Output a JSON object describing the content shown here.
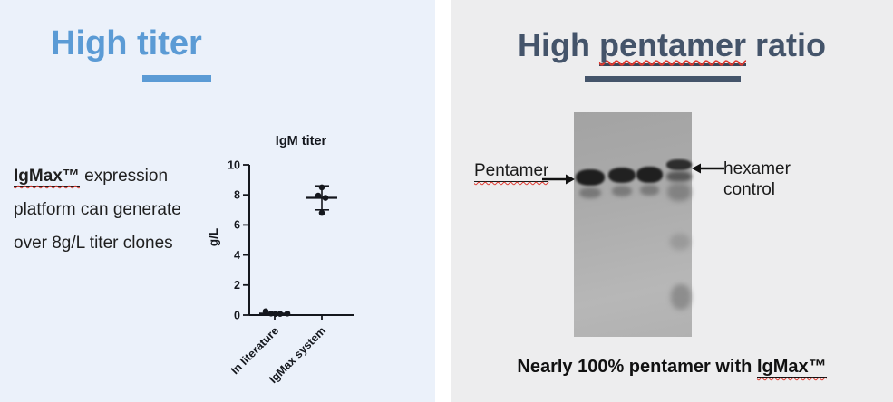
{
  "left_panel": {
    "title": {
      "prefix": "High ",
      "word": "titer"
    },
    "description": {
      "term": "IgMax™",
      "line1_rest": " expression",
      "line2": "platform can generate",
      "line3": "over 8g/L titer clones"
    }
  },
  "chart_data": {
    "type": "scatter",
    "title": "IgM titer",
    "ylabel": "g/L",
    "xlabel": "",
    "ylim": [
      0,
      10
    ],
    "yticks": [
      0,
      2,
      4,
      6,
      8,
      10
    ],
    "grid": false,
    "legend": "none",
    "categories": [
      "In literature",
      "IgMax system"
    ],
    "series": [
      {
        "name": "In literature",
        "points": [
          {
            "v": 0.25,
            "dx": -10
          },
          {
            "v": 0.1,
            "dx": -4
          },
          {
            "v": 0.08,
            "dx": 1
          },
          {
            "v": 0.08,
            "dx": 6
          },
          {
            "v": 0.1,
            "dx": 14
          }
        ],
        "mean": 0.1
      },
      {
        "name": "IgMax system",
        "points": [
          {
            "v": 8.5,
            "dx": 0
          },
          {
            "v": 7.95,
            "dx": -4
          },
          {
            "v": 7.8,
            "dx": 4
          },
          {
            "v": 6.8,
            "dx": 0
          }
        ],
        "mean": 7.8,
        "sd_low": 7.0,
        "sd_high": 8.6
      }
    ]
  },
  "right_panel": {
    "title": {
      "prefix": "High ",
      "word": "pentamer",
      "suffix": " ratio"
    },
    "gel": {
      "lane_count": 4,
      "left_label": "Pentamer",
      "right_label_line1": "hexamer",
      "right_label_line2": "control"
    },
    "caption": {
      "prefix": "Nearly 100% pentamer with ",
      "term": "IgMax™"
    }
  },
  "colors": {
    "left_panel_bg": "#ebf1fa",
    "right_panel_bg": "#ededee",
    "accent_blue": "#5b9bd5",
    "accent_slate": "#44546a",
    "text_dark": "#1f1f1f",
    "chart_ink": "#14171d",
    "squiggle_red": "#e0392f"
  }
}
